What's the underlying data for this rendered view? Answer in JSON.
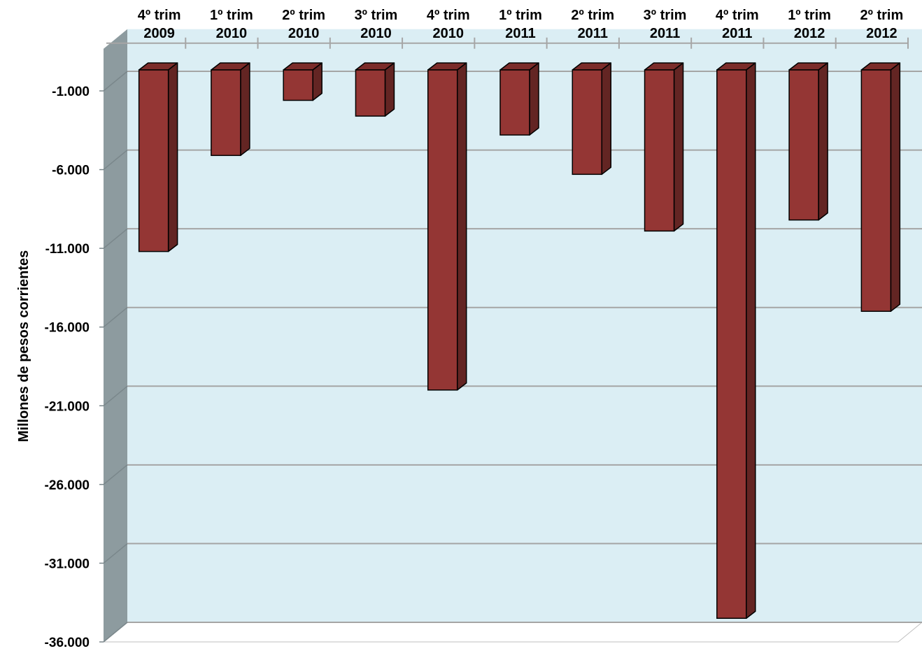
{
  "chart_data": {
    "type": "bar",
    "title": "",
    "xlabel": "",
    "ylabel": "Millones de pesos corrientes",
    "categories": [
      [
        "4º trim",
        "2009"
      ],
      [
        "1º trim",
        "2010"
      ],
      [
        "2º trim",
        "2010"
      ],
      [
        "3º trim",
        "2010"
      ],
      [
        "4º trim",
        "2010"
      ],
      [
        "1º trim",
        "2011"
      ],
      [
        "2º trim",
        "2011"
      ],
      [
        "3º trim",
        "2011"
      ],
      [
        "4º trim",
        "2011"
      ],
      [
        "1º trim",
        "2012"
      ],
      [
        "2º trim",
        "2012"
      ]
    ],
    "series": [
      {
        "values": [
          -11200,
          -5100,
          -1600,
          -2600,
          -20000,
          -3800,
          -6300,
          -9900,
          -34500,
          -9200,
          -15000
        ]
      }
    ],
    "ylim": [
      -36000,
      1500
    ],
    "yticks": [
      -1000,
      -6000,
      -11000,
      -16000,
      -21000,
      -26000,
      -31000,
      -36000
    ],
    "ytick_labels": [
      "-1.000",
      "-6.000",
      "-11.000",
      "-16.000",
      "-21.000",
      "-26.000",
      "-31.000",
      "-36.000"
    ],
    "grid": true,
    "style": "3d",
    "colors": {
      "bar_front": "#943634",
      "bar_side": "#632523",
      "bar_top": "#7b2c2a",
      "plot_back": "#dbeef4",
      "side_wall": "#8d9b9f",
      "gridline": "#a5a5a5",
      "floor": "#ffffff"
    }
  }
}
